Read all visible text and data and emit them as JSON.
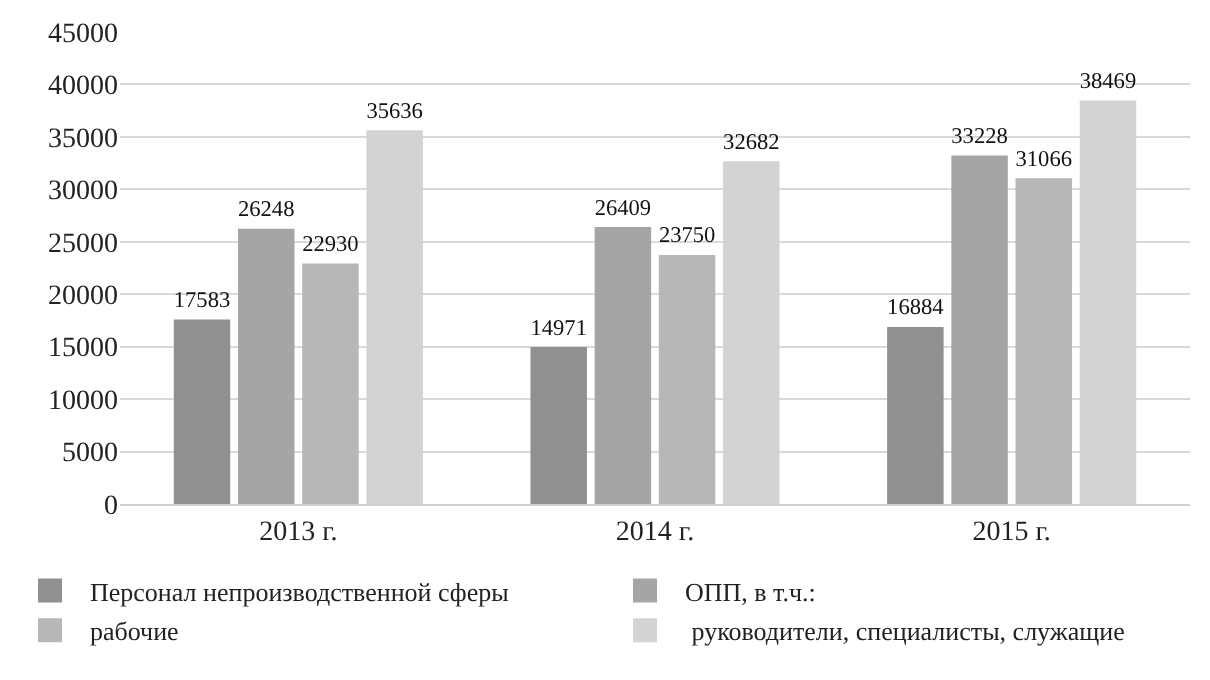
{
  "chart_data": {
    "type": "bar",
    "categories": [
      "2013 г.",
      "2014 г.",
      "2015 г."
    ],
    "series": [
      {
        "name": "Персонал непроизводственной сферы",
        "color": "#909090",
        "values": [
          17583,
          14971,
          16884
        ]
      },
      {
        "name": "ОПП, в т.ч.:",
        "color": "#a5a5a5",
        "values": [
          26248,
          26409,
          33228
        ]
      },
      {
        "name": "рабочие",
        "color": "#b7b7b7",
        "values": [
          22930,
          23750,
          31066
        ]
      },
      {
        "name": " руководители, специалисты, служащие",
        "color": "#d3d3d3",
        "values": [
          35636,
          32682,
          38469
        ]
      }
    ],
    "ylim": [
      0,
      45000
    ],
    "yticks": [
      0,
      5000,
      10000,
      15000,
      20000,
      25000,
      30000,
      35000,
      40000,
      45000
    ],
    "grid": "y",
    "legend": "bottom",
    "data_labels": true
  }
}
